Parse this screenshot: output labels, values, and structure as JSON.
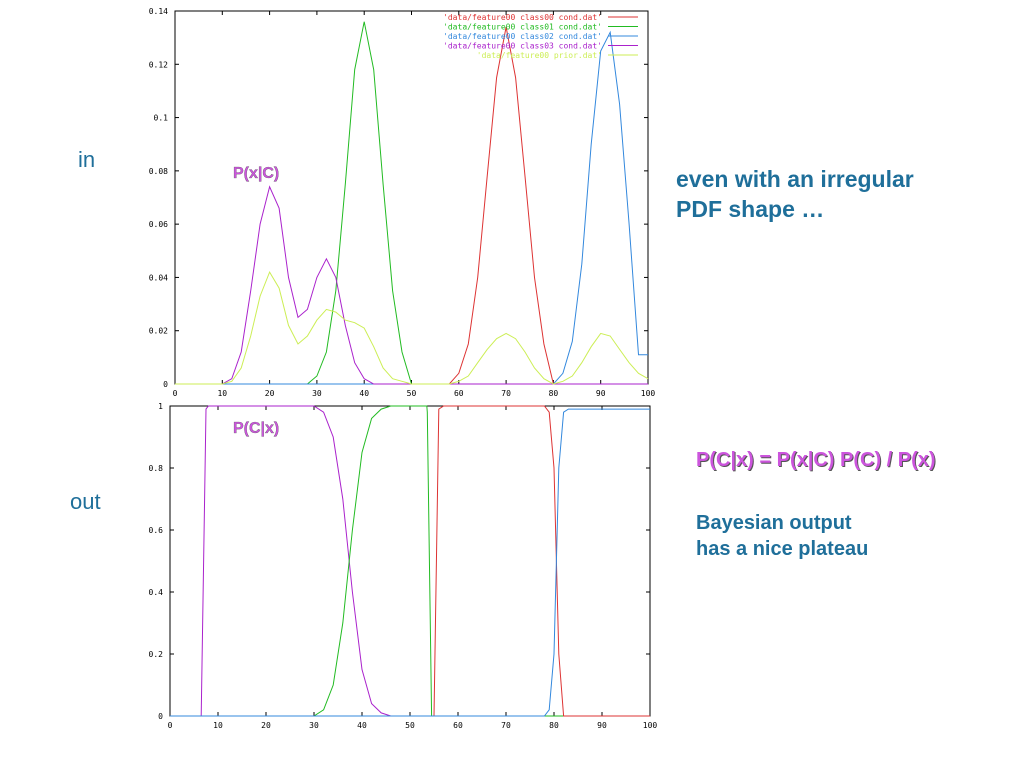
{
  "labels": {
    "in": "in",
    "out": "out",
    "note_top_line1": "even with an irregular",
    "note_top_line2": "PDF shape …",
    "formula": "P(C|x) = P(x|C) P(C) / P(x)",
    "note_bottom_line1": "Bayesian output",
    "note_bottom_line2": "has a nice plateau"
  },
  "colors": {
    "class00": "#dd3333",
    "class01": "#22bb22",
    "class02": "#3388dd",
    "class03": "#aa22cc",
    "prior": "#ccee55"
  },
  "chart_data": [
    {
      "type": "line",
      "curve_label": "P(x|C)",
      "xlim": [
        0,
        100
      ],
      "ylim": [
        0,
        0.14
      ],
      "xticks": [
        "0",
        "10",
        "20",
        "30",
        "40",
        "50",
        "60",
        "70",
        "80",
        "90",
        "100"
      ],
      "yticks": [
        "0",
        "0.02",
        "0.04",
        "0.06",
        "0.08",
        "0.1",
        "0.12",
        "0.14"
      ],
      "legend_position": "top-right",
      "series": [
        {
          "name": "'data/feature00 class00 cond.dat'",
          "color_key": "class00",
          "x": [
            0,
            58,
            60,
            62,
            64,
            66,
            68,
            70,
            72,
            74,
            76,
            78,
            80,
            100
          ],
          "y": [
            0,
            0,
            0.004,
            0.015,
            0.04,
            0.078,
            0.115,
            0.134,
            0.115,
            0.078,
            0.04,
            0.015,
            0,
            0
          ]
        },
        {
          "name": "'data/feature00 class01 cond.dat'",
          "color_key": "class01",
          "x": [
            0,
            28,
            30,
            32,
            34,
            36,
            38,
            40,
            42,
            44,
            46,
            48,
            50,
            100
          ],
          "y": [
            0,
            0,
            0.003,
            0.012,
            0.035,
            0.075,
            0.118,
            0.136,
            0.118,
            0.075,
            0.035,
            0.012,
            0,
            0
          ]
        },
        {
          "name": "'data/feature00 class02 cond.dat'",
          "color_key": "class02",
          "x": [
            0,
            80,
            82,
            84,
            86,
            88,
            90,
            92,
            94,
            96,
            98,
            100
          ],
          "y": [
            0,
            0,
            0.004,
            0.016,
            0.045,
            0.09,
            0.125,
            0.132,
            0.105,
            0.06,
            0.011,
            0.011
          ]
        },
        {
          "name": "'data/feature00 class03 cond.dat'",
          "color_key": "class03",
          "x": [
            0,
            10,
            12,
            14,
            16,
            18,
            20,
            22,
            24,
            26,
            28,
            30,
            32,
            34,
            36,
            38,
            40,
            42,
            44,
            100
          ],
          "y": [
            0,
            0,
            0.002,
            0.012,
            0.035,
            0.06,
            0.074,
            0.066,
            0.04,
            0.025,
            0.028,
            0.04,
            0.047,
            0.04,
            0.022,
            0.008,
            0.002,
            0,
            0,
            0
          ]
        },
        {
          "name": "'data/feature00 prior.dat'",
          "color_key": "prior",
          "x": [
            0,
            10,
            12,
            14,
            16,
            18,
            20,
            22,
            24,
            26,
            28,
            30,
            32,
            34,
            36,
            38,
            40,
            42,
            44,
            46,
            48,
            50,
            58,
            60,
            62,
            64,
            66,
            68,
            70,
            72,
            74,
            76,
            78,
            80,
            82,
            84,
            86,
            88,
            90,
            92,
            94,
            96,
            98,
            100
          ],
          "y": [
            0,
            0,
            0.001,
            0.006,
            0.018,
            0.033,
            0.042,
            0.036,
            0.022,
            0.015,
            0.018,
            0.024,
            0.028,
            0.027,
            0.024,
            0.023,
            0.021,
            0.014,
            0.006,
            0.002,
            0.001,
            0,
            0,
            0.001,
            0.003,
            0.008,
            0.013,
            0.017,
            0.019,
            0.017,
            0.012,
            0.006,
            0.002,
            0,
            0.001,
            0.003,
            0.008,
            0.014,
            0.019,
            0.018,
            0.013,
            0.008,
            0.004,
            0.002
          ]
        }
      ]
    },
    {
      "type": "line",
      "curve_label": "P(C|x)",
      "xlim": [
        0,
        100
      ],
      "ylim": [
        0,
        1
      ],
      "xticks": [
        "0",
        "10",
        "20",
        "30",
        "40",
        "50",
        "60",
        "70",
        "80",
        "90",
        "100"
      ],
      "yticks": [
        "0",
        "0.2",
        "0.4",
        "0.6",
        "0.8",
        "1"
      ],
      "series": [
        {
          "color_key": "class03",
          "x": [
            0,
            6.5,
            7.5,
            8,
            30,
            32,
            34,
            36,
            38,
            40,
            42,
            44,
            46,
            100
          ],
          "y": [
            0,
            0,
            0.99,
            1,
            1,
            0.98,
            0.9,
            0.7,
            0.4,
            0.15,
            0.04,
            0.01,
            0,
            0
          ]
        },
        {
          "color_key": "class01",
          "x": [
            0,
            30,
            32,
            34,
            36,
            38,
            40,
            42,
            44,
            46,
            53.5,
            53.6,
            54.5,
            100
          ],
          "y": [
            0,
            0,
            0.02,
            0.1,
            0.3,
            0.6,
            0.85,
            0.96,
            0.99,
            1,
            1,
            0.98,
            0,
            0
          ]
        },
        {
          "color_key": "class00",
          "x": [
            0,
            55,
            56,
            57,
            78,
            79,
            80,
            81,
            82,
            100
          ],
          "y": [
            0,
            0,
            0.99,
            1,
            1,
            0.98,
            0.8,
            0.2,
            0,
            0
          ]
        },
        {
          "color_key": "class02",
          "x": [
            0,
            78,
            79,
            80,
            81,
            82,
            83,
            85,
            90,
            100
          ],
          "y": [
            0,
            0,
            0.02,
            0.2,
            0.8,
            0.98,
            0.99,
            0.99,
            0.99,
            0.99
          ]
        }
      ]
    }
  ]
}
